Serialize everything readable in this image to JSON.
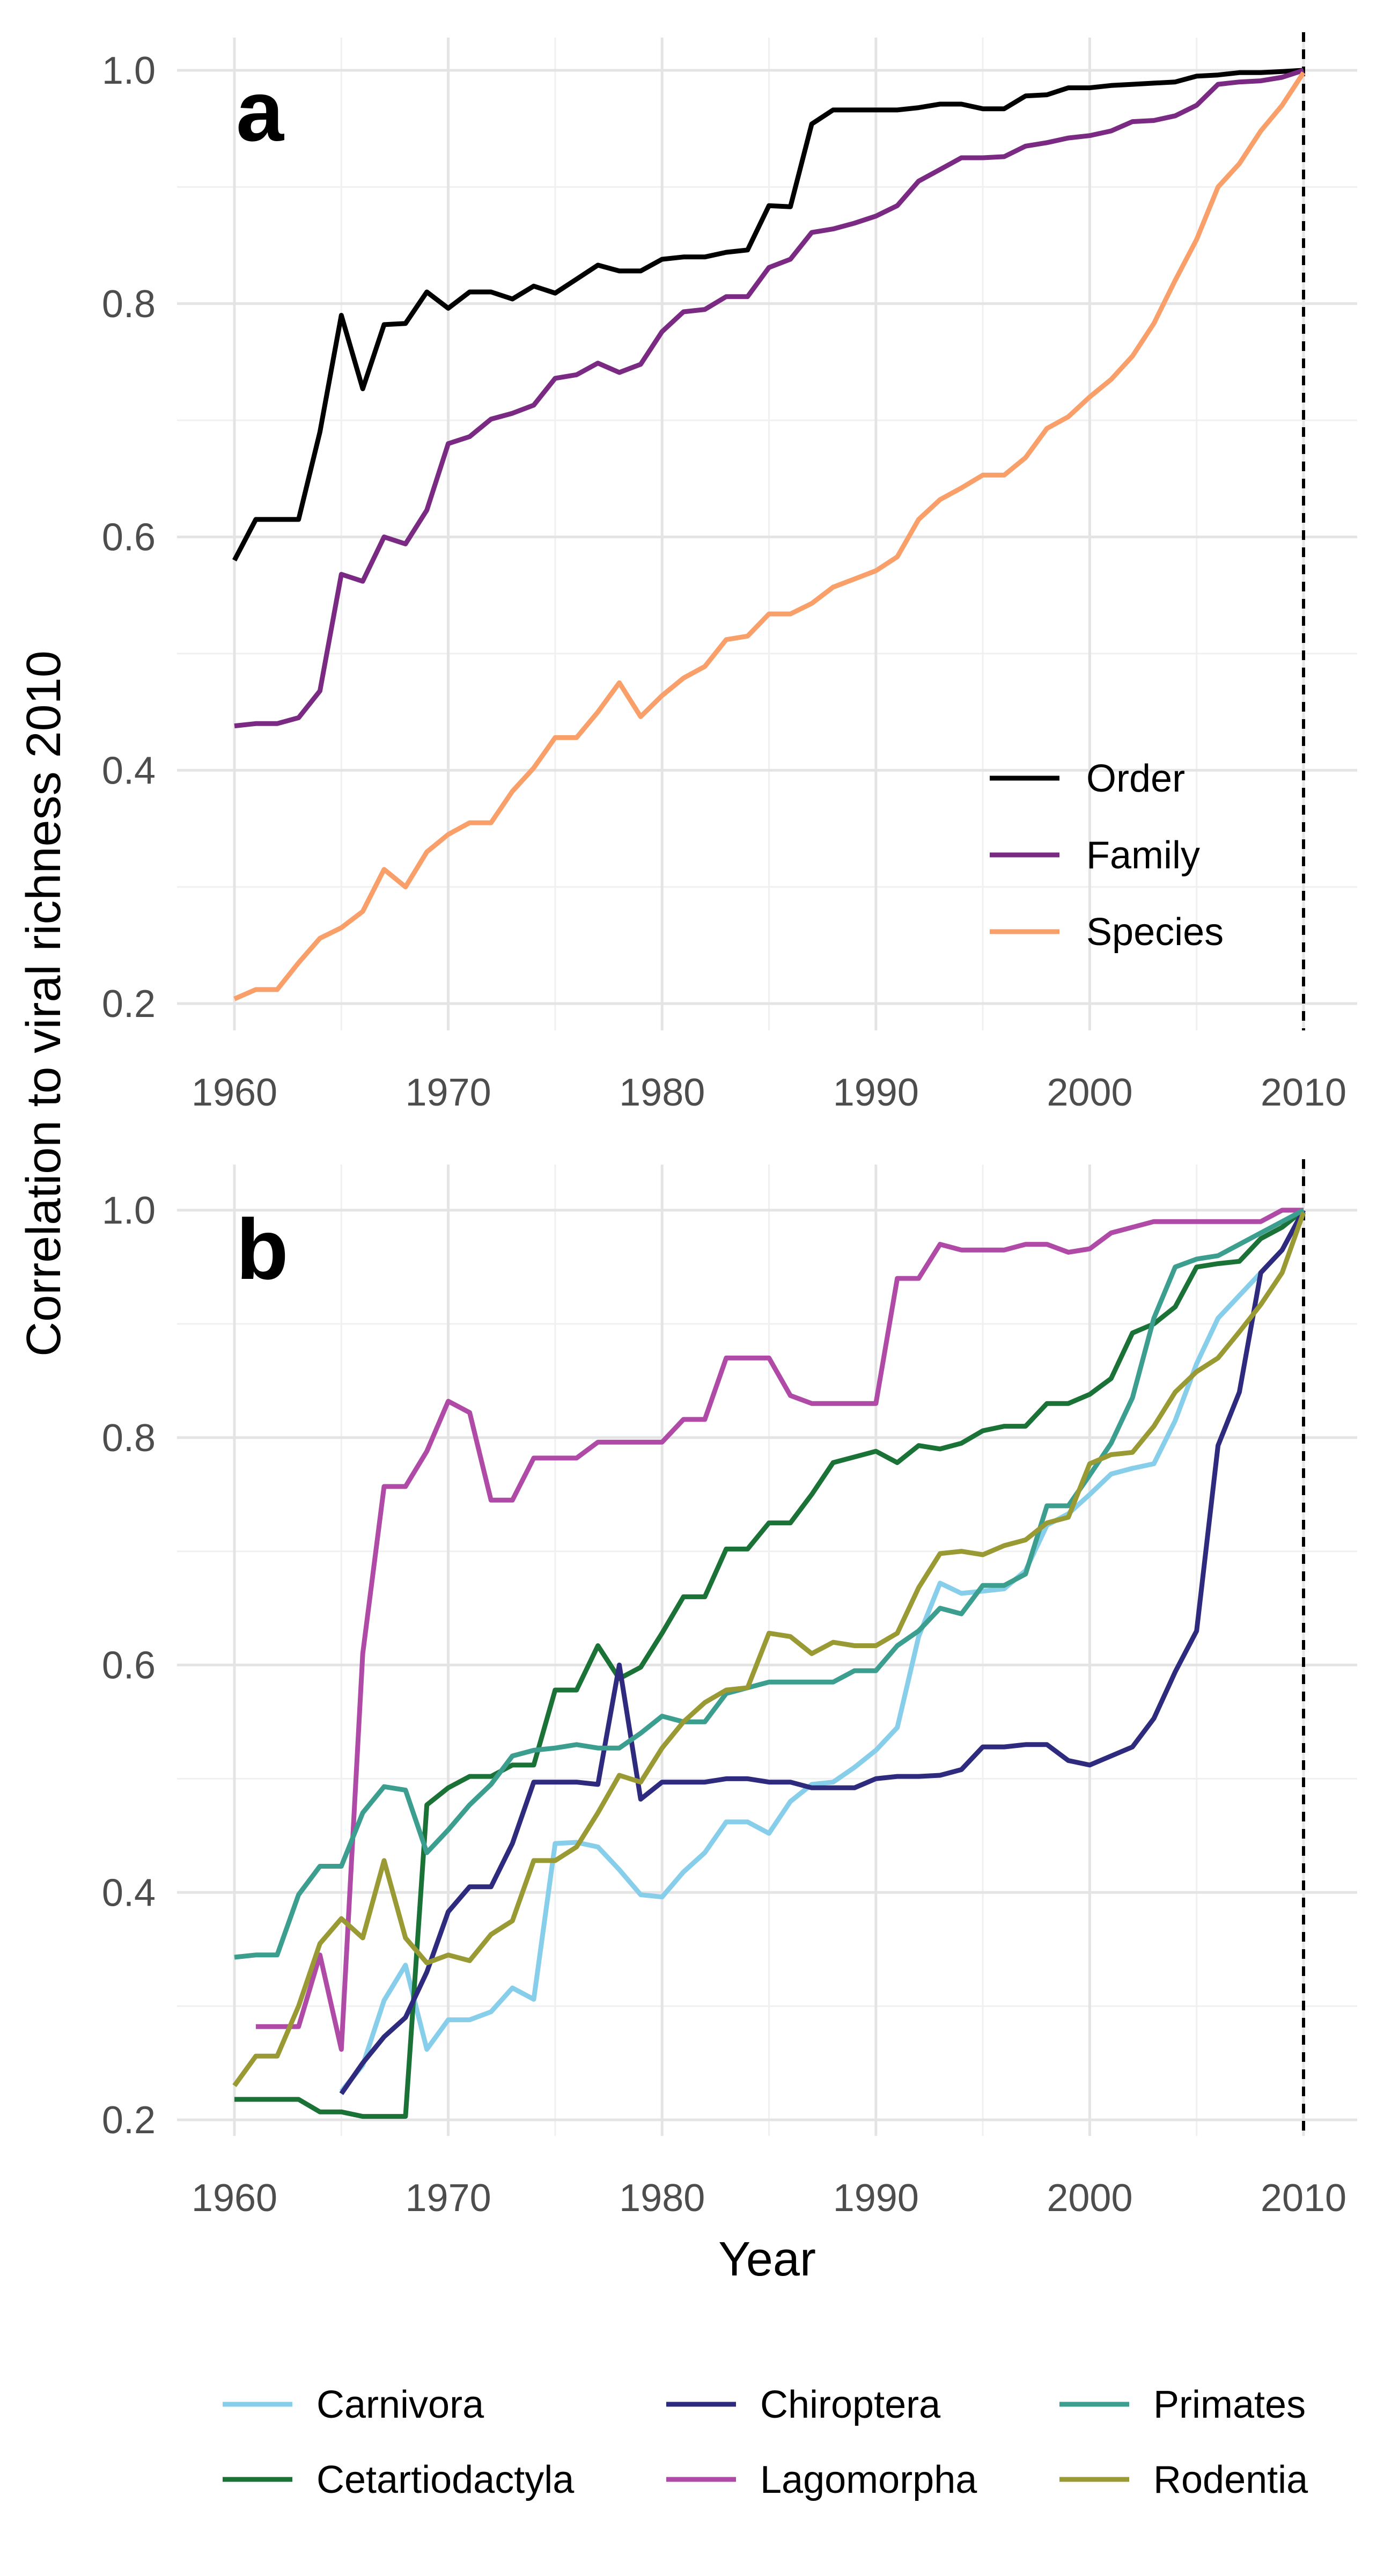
{
  "figure": {
    "ylabel": "Correlation to viral richness 2010",
    "xlabel": "Year"
  },
  "chart_data": [
    {
      "panel": "a",
      "type": "line",
      "xlim": [
        1960,
        2010
      ],
      "ylim": [
        0.2,
        1.0
      ],
      "x_ticks": [
        1960,
        1970,
        1980,
        1990,
        2000,
        2010
      ],
      "y_ticks": [
        0.2,
        0.4,
        0.6,
        0.8,
        1.0
      ],
      "y_tick_labels": [
        "0.2",
        "0.4",
        "0.6",
        "0.8",
        "1.0"
      ],
      "vline": 2010,
      "legend_position": "bottom-right (inside)",
      "grid": true,
      "series": [
        {
          "name": "Order",
          "color": "#000000",
          "x": [
            1960,
            1961,
            1962,
            1963,
            1964,
            1965,
            1966,
            1967,
            1968,
            1969,
            1970,
            1971,
            1972,
            1973,
            1974,
            1975,
            1976,
            1977,
            1978,
            1979,
            1980,
            1981,
            1982,
            1983,
            1984,
            1985,
            1986,
            1987,
            1988,
            1989,
            1990,
            1991,
            1992,
            1993,
            1994,
            1995,
            1996,
            1997,
            1998,
            1999,
            2000,
            2001,
            2002,
            2003,
            2004,
            2005,
            2006,
            2007,
            2008,
            2009,
            2010
          ],
          "values": [
            0.58,
            0.615,
            0.615,
            0.615,
            0.69,
            0.79,
            0.727,
            0.782,
            0.783,
            0.81,
            0.796,
            0.81,
            0.81,
            0.804,
            0.815,
            0.809,
            0.821,
            0.833,
            0.828,
            0.828,
            0.838,
            0.84,
            0.84,
            0.844,
            0.846,
            0.884,
            0.883,
            0.954,
            0.966,
            0.966,
            0.966,
            0.966,
            0.968,
            0.971,
            0.971,
            0.967,
            0.967,
            0.978,
            0.979,
            0.985,
            0.985,
            0.987,
            0.988,
            0.989,
            0.99,
            0.995,
            0.996,
            0.998,
            0.998,
            0.999,
            1.0
          ]
        },
        {
          "name": "Family",
          "color": "#7b2a83",
          "x": [
            1960,
            1961,
            1962,
            1963,
            1964,
            1965,
            1966,
            1967,
            1968,
            1969,
            1970,
            1971,
            1972,
            1973,
            1974,
            1975,
            1976,
            1977,
            1978,
            1979,
            1980,
            1981,
            1982,
            1983,
            1984,
            1985,
            1986,
            1987,
            1988,
            1989,
            1990,
            1991,
            1992,
            1993,
            1994,
            1995,
            1996,
            1997,
            1998,
            1999,
            2000,
            2001,
            2002,
            2003,
            2004,
            2005,
            2006,
            2007,
            2008,
            2009,
            2010
          ],
          "values": [
            0.438,
            0.44,
            0.44,
            0.445,
            0.468,
            0.568,
            0.562,
            0.6,
            0.594,
            0.623,
            0.68,
            0.686,
            0.701,
            0.706,
            0.713,
            0.736,
            0.739,
            0.749,
            0.741,
            0.748,
            0.776,
            0.793,
            0.795,
            0.806,
            0.806,
            0.831,
            0.838,
            0.861,
            0.864,
            0.869,
            0.875,
            0.884,
            0.905,
            0.915,
            0.925,
            0.925,
            0.926,
            0.935,
            0.938,
            0.942,
            0.944,
            0.948,
            0.956,
            0.957,
            0.961,
            0.97,
            0.988,
            0.99,
            0.991,
            0.994,
            1.0
          ]
        },
        {
          "name": "Species",
          "color": "#f9a06a",
          "x": [
            1960,
            1961,
            1962,
            1963,
            1964,
            1965,
            1966,
            1967,
            1968,
            1969,
            1970,
            1971,
            1972,
            1973,
            1974,
            1975,
            1976,
            1977,
            1978,
            1979,
            1980,
            1981,
            1982,
            1983,
            1984,
            1985,
            1986,
            1987,
            1988,
            1989,
            1990,
            1991,
            1992,
            1993,
            1994,
            1995,
            1996,
            1997,
            1998,
            1999,
            2000,
            2001,
            2002,
            2003,
            2004,
            2005,
            2006,
            2007,
            2008,
            2009,
            2010
          ],
          "values": [
            0.204,
            0.212,
            0.212,
            0.235,
            0.256,
            0.265,
            0.279,
            0.315,
            0.3,
            0.33,
            0.345,
            0.355,
            0.355,
            0.382,
            0.402,
            0.428,
            0.428,
            0.45,
            0.475,
            0.446,
            0.464,
            0.479,
            0.489,
            0.512,
            0.515,
            0.534,
            0.534,
            0.543,
            0.557,
            0.564,
            0.571,
            0.583,
            0.615,
            0.632,
            0.642,
            0.653,
            0.653,
            0.668,
            0.693,
            0.703,
            0.72,
            0.735,
            0.755,
            0.783,
            0.82,
            0.855,
            0.9,
            0.92,
            0.948,
            0.97,
            0.998
          ]
        }
      ]
    },
    {
      "panel": "b",
      "type": "line",
      "xlim": [
        1960,
        2010
      ],
      "ylim": [
        0.2,
        1.0
      ],
      "x_ticks": [
        1960,
        1970,
        1980,
        1990,
        2000,
        2010
      ],
      "y_ticks": [
        0.2,
        0.4,
        0.6,
        0.8,
        1.0
      ],
      "y_tick_labels": [
        "0.2",
        "0.4",
        "0.6",
        "0.8",
        "1.0"
      ],
      "vline": 2010,
      "legend_position": "bottom (outside, 3 columns)",
      "grid": true,
      "series": [
        {
          "name": "Carnivora",
          "color": "#87ceeb",
          "x": [
            1965,
            1966,
            1967,
            1968,
            1969,
            1970,
            1971,
            1972,
            1973,
            1974,
            1975,
            1976,
            1977,
            1978,
            1979,
            1980,
            1981,
            1982,
            1983,
            1984,
            1985,
            1986,
            1987,
            1988,
            1989,
            1990,
            1991,
            1992,
            1993,
            1994,
            1995,
            1996,
            1997,
            1998,
            1999,
            2000,
            2001,
            2002,
            2003,
            2004,
            2005,
            2006,
            2007,
            2008,
            2009,
            2010
          ],
          "values": [
            0.225,
            0.248,
            0.305,
            0.336,
            0.262,
            0.288,
            0.288,
            0.295,
            0.316,
            0.306,
            0.443,
            0.444,
            0.44,
            0.42,
            0.398,
            0.396,
            0.418,
            0.435,
            0.462,
            0.462,
            0.452,
            0.48,
            0.495,
            0.497,
            0.51,
            0.525,
            0.545,
            0.625,
            0.672,
            0.663,
            0.665,
            0.667,
            0.683,
            0.723,
            0.733,
            0.75,
            0.768,
            0.773,
            0.777,
            0.815,
            0.865,
            0.905,
            0.925,
            0.945,
            0.965,
            1.0
          ]
        },
        {
          "name": "Cetartiodactyla",
          "color": "#1a7236",
          "x": [
            1960,
            1961,
            1962,
            1963,
            1964,
            1965,
            1966,
            1967,
            1968,
            1969,
            1970,
            1971,
            1972,
            1973,
            1974,
            1975,
            1976,
            1977,
            1978,
            1979,
            1980,
            1981,
            1982,
            1983,
            1984,
            1985,
            1986,
            1987,
            1988,
            1989,
            1990,
            1991,
            1992,
            1993,
            1994,
            1995,
            1996,
            1997,
            1998,
            1999,
            2000,
            2001,
            2002,
            2003,
            2004,
            2005,
            2006,
            2007,
            2008,
            2009,
            2010
          ],
          "values": [
            0.218,
            0.218,
            0.218,
            0.218,
            0.207,
            0.207,
            0.203,
            0.203,
            0.203,
            0.477,
            0.492,
            0.502,
            0.502,
            0.512,
            0.512,
            0.578,
            0.578,
            0.617,
            0.588,
            0.598,
            0.628,
            0.66,
            0.66,
            0.702,
            0.702,
            0.725,
            0.725,
            0.75,
            0.778,
            0.783,
            0.788,
            0.778,
            0.793,
            0.79,
            0.795,
            0.806,
            0.81,
            0.81,
            0.83,
            0.83,
            0.838,
            0.852,
            0.892,
            0.9,
            0.915,
            0.95,
            0.953,
            0.955,
            0.975,
            0.985,
            1.0
          ]
        },
        {
          "name": "Chiroptera",
          "color": "#2e2b7f",
          "x": [
            1965,
            1966,
            1967,
            1968,
            1969,
            1970,
            1971,
            1972,
            1973,
            1974,
            1975,
            1976,
            1977,
            1978,
            1979,
            1980,
            1981,
            1982,
            1983,
            1984,
            1985,
            1986,
            1987,
            1988,
            1989,
            1990,
            1991,
            1992,
            1993,
            1994,
            1995,
            1996,
            1997,
            1998,
            1999,
            2000,
            2001,
            2002,
            2003,
            2004,
            2005,
            2006,
            2007,
            2008,
            2009,
            2010
          ],
          "values": [
            0.223,
            0.25,
            0.273,
            0.29,
            0.33,
            0.383,
            0.405,
            0.405,
            0.443,
            0.497,
            0.497,
            0.497,
            0.495,
            0.6,
            0.482,
            0.497,
            0.497,
            0.497,
            0.5,
            0.5,
            0.497,
            0.497,
            0.492,
            0.492,
            0.492,
            0.5,
            0.502,
            0.502,
            0.503,
            0.508,
            0.528,
            0.528,
            0.53,
            0.53,
            0.516,
            0.512,
            0.52,
            0.528,
            0.553,
            0.594,
            0.63,
            0.793,
            0.84,
            0.945,
            0.965,
            1.0
          ]
        },
        {
          "name": "Lagomorpha",
          "color": "#b04aa7",
          "x": [
            1961,
            1962,
            1963,
            1964,
            1965,
            1966,
            1967,
            1968,
            1969,
            1970,
            1971,
            1972,
            1973,
            1974,
            1975,
            1976,
            1977,
            1978,
            1979,
            1980,
            1981,
            1982,
            1983,
            1984,
            1985,
            1986,
            1987,
            1988,
            1989,
            1990,
            1991,
            1992,
            1993,
            1994,
            1995,
            1996,
            1997,
            1998,
            1999,
            2000,
            2001,
            2002,
            2003,
            2004,
            2005,
            2006,
            2007,
            2008,
            2009,
            2010
          ],
          "values": [
            0.282,
            0.282,
            0.282,
            0.345,
            0.262,
            0.61,
            0.757,
            0.757,
            0.788,
            0.832,
            0.822,
            0.745,
            0.745,
            0.782,
            0.782,
            0.782,
            0.796,
            0.796,
            0.796,
            0.796,
            0.816,
            0.816,
            0.87,
            0.87,
            0.87,
            0.837,
            0.83,
            0.83,
            0.83,
            0.83,
            0.94,
            0.94,
            0.97,
            0.965,
            0.965,
            0.965,
            0.97,
            0.97,
            0.963,
            0.966,
            0.98,
            0.985,
            0.99,
            0.99,
            0.99,
            0.99,
            0.99,
            0.99,
            1.0,
            1.0
          ]
        },
        {
          "name": "Primates",
          "color": "#3b9e8e",
          "x": [
            1960,
            1961,
            1962,
            1963,
            1964,
            1965,
            1966,
            1967,
            1968,
            1969,
            1970,
            1971,
            1972,
            1973,
            1974,
            1975,
            1976,
            1977,
            1978,
            1979,
            1980,
            1981,
            1982,
            1983,
            1984,
            1985,
            1986,
            1987,
            1988,
            1989,
            1990,
            1991,
            1992,
            1993,
            1994,
            1995,
            1996,
            1997,
            1998,
            1999,
            2000,
            2001,
            2002,
            2003,
            2004,
            2005,
            2006,
            2007,
            2008,
            2009,
            2010
          ],
          "values": [
            0.343,
            0.345,
            0.345,
            0.398,
            0.423,
            0.423,
            0.47,
            0.493,
            0.49,
            0.435,
            0.455,
            0.477,
            0.495,
            0.52,
            0.525,
            0.527,
            0.53,
            0.527,
            0.527,
            0.54,
            0.555,
            0.55,
            0.55,
            0.575,
            0.58,
            0.585,
            0.585,
            0.585,
            0.585,
            0.595,
            0.595,
            0.617,
            0.63,
            0.65,
            0.645,
            0.67,
            0.67,
            0.68,
            0.74,
            0.74,
            0.767,
            0.795,
            0.835,
            0.905,
            0.95,
            0.957,
            0.96,
            0.97,
            0.98,
            0.99,
            1.0
          ]
        },
        {
          "name": "Rodentia",
          "color": "#9a9a35",
          "x": [
            1960,
            1961,
            1962,
            1963,
            1964,
            1965,
            1966,
            1967,
            1968,
            1969,
            1970,
            1971,
            1972,
            1973,
            1974,
            1975,
            1976,
            1977,
            1978,
            1979,
            1980,
            1981,
            1982,
            1983,
            1984,
            1985,
            1986,
            1987,
            1988,
            1989,
            1990,
            1991,
            1992,
            1993,
            1994,
            1995,
            1996,
            1997,
            1998,
            1999,
            2000,
            2001,
            2002,
            2003,
            2004,
            2005,
            2006,
            2007,
            2008,
            2009,
            2010
          ],
          "values": [
            0.23,
            0.256,
            0.256,
            0.3,
            0.355,
            0.377,
            0.36,
            0.428,
            0.36,
            0.338,
            0.345,
            0.34,
            0.363,
            0.375,
            0.428,
            0.428,
            0.44,
            0.47,
            0.503,
            0.497,
            0.527,
            0.55,
            0.567,
            0.578,
            0.58,
            0.628,
            0.625,
            0.61,
            0.62,
            0.617,
            0.617,
            0.628,
            0.668,
            0.698,
            0.7,
            0.697,
            0.705,
            0.71,
            0.725,
            0.73,
            0.777,
            0.785,
            0.787,
            0.81,
            0.84,
            0.858,
            0.87,
            0.893,
            0.917,
            0.945,
            0.998
          ]
        }
      ]
    }
  ]
}
